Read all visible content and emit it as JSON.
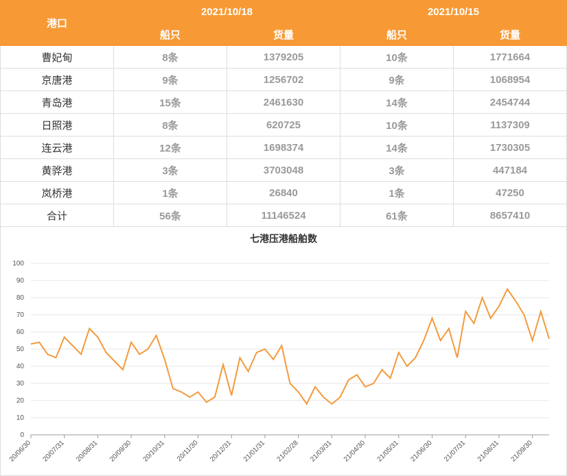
{
  "table": {
    "header": {
      "port": "港口",
      "dates": [
        "2021/10/18",
        "2021/10/15"
      ],
      "columns": [
        "船只",
        "货量",
        "船只",
        "货量"
      ]
    },
    "rows": [
      [
        "曹妃甸",
        "8条",
        "1379205",
        "10条",
        "1771664"
      ],
      [
        "京唐港",
        "9条",
        "1256702",
        "9条",
        "1068954"
      ],
      [
        "青岛港",
        "15条",
        "2461630",
        "14条",
        "2454744"
      ],
      [
        "日照港",
        "8条",
        "620725",
        "10条",
        "1137309"
      ],
      [
        "连云港",
        "12条",
        "1698374",
        "14条",
        "1730305"
      ],
      [
        "黄骅港",
        "3条",
        "3703048",
        "3条",
        "447184"
      ],
      [
        "岚桥港",
        "1条",
        "26840",
        "1条",
        "47250"
      ],
      [
        "合计",
        "56条",
        "11146524",
        "61条",
        "8657410"
      ]
    ]
  },
  "chart_data": {
    "type": "line",
    "title": "七港压港船舶数",
    "color": "#f39a3c",
    "categories": [
      "20/06/30",
      null,
      null,
      null,
      "20/07/31",
      null,
      null,
      null,
      "20/08/31",
      null,
      null,
      null,
      "20/09/30",
      null,
      null,
      null,
      "20/10/31",
      null,
      null,
      null,
      "20/11/30",
      null,
      null,
      null,
      "20/12/31",
      null,
      null,
      null,
      "21/01/31",
      null,
      null,
      null,
      "21/02/28",
      null,
      null,
      null,
      "21/03/31",
      null,
      null,
      null,
      "21/04/30",
      null,
      null,
      null,
      "21/05/31",
      null,
      null,
      null,
      "21/06/30",
      null,
      null,
      null,
      "21/07/31",
      null,
      null,
      null,
      "21/08/31",
      null,
      null,
      null,
      "21/09/30",
      null,
      null
    ],
    "values": [
      53,
      54,
      47,
      45,
      57,
      52,
      47,
      62,
      57,
      48,
      43,
      38,
      54,
      47,
      50,
      58,
      44,
      27,
      25,
      22,
      25,
      19,
      22,
      41,
      23,
      45,
      37,
      48,
      50,
      44,
      52,
      30,
      25,
      18,
      28,
      22,
      18,
      22,
      32,
      35,
      28,
      30,
      38,
      33,
      48,
      40,
      45,
      55,
      68,
      55,
      62,
      45,
      72,
      65,
      80,
      68,
      75,
      85,
      78,
      70,
      55,
      72,
      56
    ],
    "ylim": [
      0,
      100
    ],
    "yticks": [
      0,
      10,
      20,
      30,
      40,
      50,
      60,
      70,
      80,
      90,
      100
    ],
    "grid": true
  }
}
